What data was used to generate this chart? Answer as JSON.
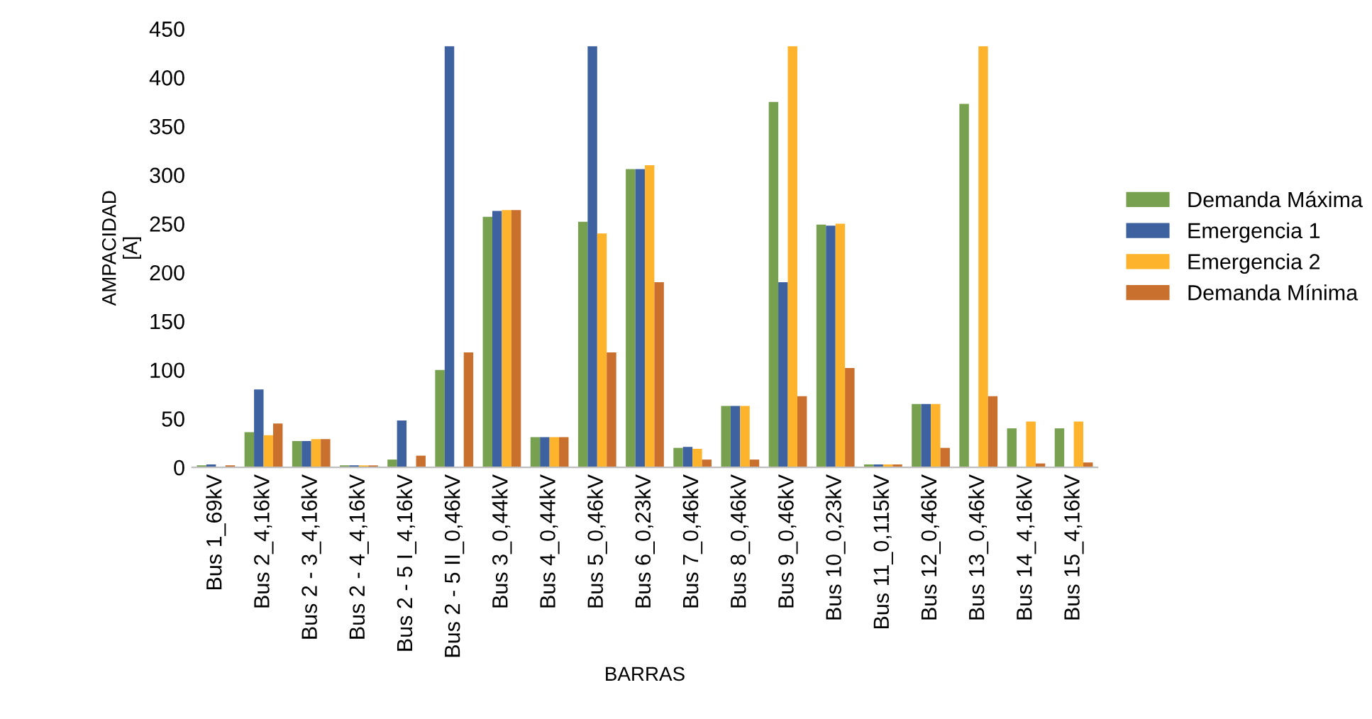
{
  "chart_data": {
    "type": "bar",
    "xlabel": "BARRAS",
    "ylabel": "AMPACIDAD\n[A]",
    "categories": [
      "Bus 1_69kV",
      "Bus 2_4,16kV",
      "Bus 2 - 3_4,16kV",
      "Bus 2 - 4_4,16kV",
      "Bus 2 - 5 I_4,16kV",
      "Bus 2 - 5 II_0,46kV",
      "Bus 3_0,44kV",
      "Bus 4_0,44kV",
      "Bus 5_0,46kV",
      "Bus 6_0,23kV",
      "Bus 7_0,46kV",
      "Bus 8_0,46kV",
      "Bus 9_0,46kV",
      "Bus 10_0,23kV",
      "Bus 11_0,115kV",
      "Bus 12_0,46kV",
      "Bus 13_0,46kV",
      "Bus 14_4,16kV",
      "Bus 15_4,16kV"
    ],
    "series": [
      {
        "name": "Demanda Máxima",
        "color": "#77a04f",
        "values": [
          2,
          36,
          27,
          2,
          8,
          100,
          257,
          31,
          252,
          306,
          20,
          63,
          375,
          249,
          3,
          65,
          373,
          40,
          40
        ]
      },
      {
        "name": "Emergencia 1",
        "color": "#3e62a0",
        "values": [
          3,
          80,
          27,
          2,
          48,
          432,
          263,
          31,
          432,
          306,
          21,
          63,
          190,
          248,
          3,
          65,
          0,
          0,
          0
        ]
      },
      {
        "name": "Emergencia 2",
        "color": "#fdb32c",
        "values": [
          null,
          33,
          29,
          2,
          0,
          0,
          264,
          31,
          240,
          310,
          19,
          63,
          432,
          250,
          3,
          65,
          432,
          47,
          47
        ]
      },
      {
        "name": "Demanda Mínima",
        "color": "#c9702f",
        "values": [
          2,
          45,
          29,
          2,
          12,
          118,
          264,
          31,
          118,
          190,
          8,
          8,
          73,
          102,
          3,
          20,
          73,
          4,
          5
        ]
      }
    ],
    "ylim": [
      0,
      450
    ],
    "yticks": [
      0,
      50,
      100,
      150,
      200,
      250,
      300,
      350,
      400,
      450
    ],
    "grid": false,
    "legend": "right"
  }
}
